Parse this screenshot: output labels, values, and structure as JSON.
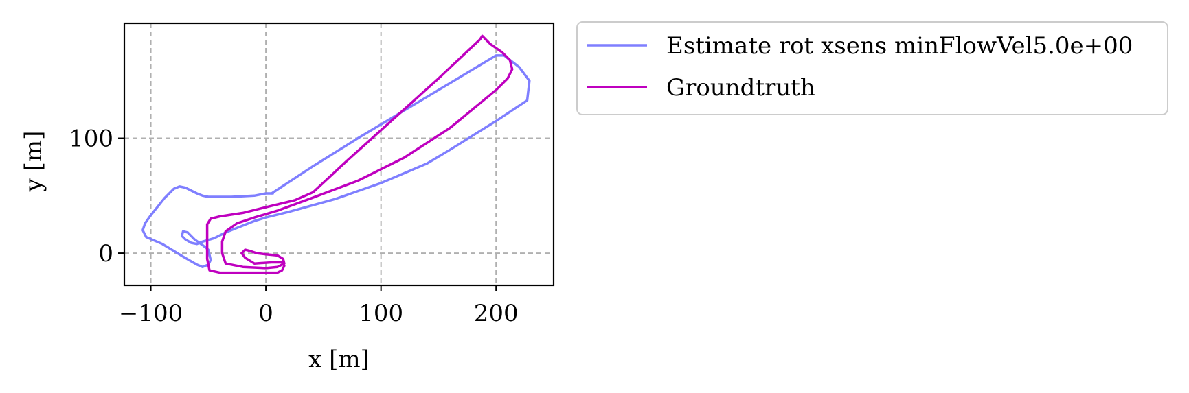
{
  "chart_data": {
    "type": "line",
    "xlabel": "x [m]",
    "ylabel": "y [m]",
    "xlim": [
      -123,
      250
    ],
    "ylim": [
      -28,
      200
    ],
    "xticks": [
      -100,
      0,
      100,
      200
    ],
    "xtick_labels": [
      "−100",
      "0",
      "100",
      "200"
    ],
    "yticks": [
      0,
      100
    ],
    "ytick_labels": [
      "0",
      "100"
    ],
    "grid": true,
    "legend_position": "outside-right-top",
    "series": [
      {
        "name": "Estimate rot xsens minFlowVel5.0e+00",
        "color": "#7f7fff",
        "x": [
          5,
          40,
          80,
          120,
          160,
          200,
          207,
          220,
          229,
          227,
          200,
          160,
          140,
          100,
          60,
          20,
          0,
          -10,
          -20,
          -35,
          -45,
          -55,
          -60,
          -65,
          -70,
          -73,
          -72,
          -68,
          -62,
          -55,
          -50,
          -48,
          -50,
          -55,
          -60,
          -72,
          -90,
          -104,
          -107,
          -105,
          -100,
          -88,
          -80,
          -75,
          -70,
          -60,
          -55,
          -50,
          -30,
          -10,
          0,
          6
        ],
        "y": [
          52,
          75,
          100,
          124,
          148,
          172,
          172,
          162,
          150,
          133,
          115,
          90,
          78,
          61,
          47,
          36,
          31,
          28,
          24,
          18,
          13,
          10,
          8,
          9,
          12,
          15,
          19,
          18,
          12,
          7,
          3,
          -6,
          -10,
          -12,
          -10,
          -3,
          8,
          14,
          20,
          26,
          33,
          48,
          56,
          58,
          57,
          52,
          50,
          49,
          49,
          50,
          52,
          52
        ]
      },
      {
        "name": "Groundtruth",
        "color": "#bf00bf",
        "x": [
          188,
          186,
          150,
          110,
          70,
          41,
          25,
          0,
          -20,
          -40,
          -48,
          -51,
          -51,
          -51,
          -49,
          -40,
          0,
          10,
          14,
          16,
          14,
          5,
          -10,
          -18,
          -21,
          -18,
          -14,
          -8,
          0,
          10,
          15,
          16,
          10,
          0,
          -20,
          -35,
          -38,
          -38,
          -35,
          -25,
          -10,
          10,
          40,
          80,
          120,
          160,
          200,
          210,
          214,
          212,
          205,
          195,
          188
        ],
        "y": [
          189,
          186,
          152,
          116,
          80,
          53,
          46,
          40,
          35,
          32,
          30,
          25,
          10,
          -5,
          -15,
          -17,
          -17,
          -17,
          -15,
          -11,
          -8,
          -8,
          -9,
          -4,
          0,
          3,
          2,
          0,
          -1,
          -2,
          -5,
          -9,
          -12,
          -13,
          -12,
          -9,
          0,
          10,
          19,
          26,
          31,
          37,
          48,
          63,
          83,
          109,
          142,
          152,
          160,
          168,
          175,
          182,
          189
        ]
      }
    ]
  }
}
